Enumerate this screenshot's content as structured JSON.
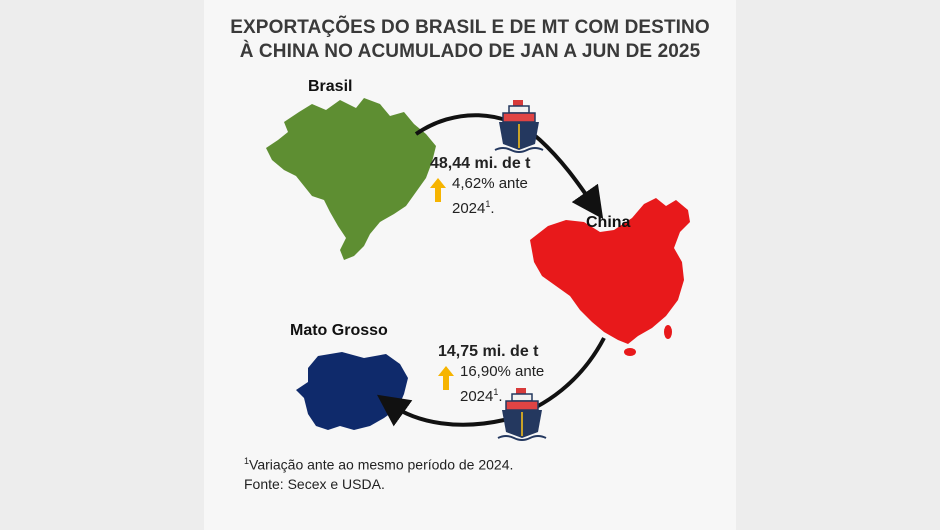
{
  "title": {
    "line1": "EXPORTAÇÕES DO BRASIL E DE MT COM DESTINO",
    "line2": "À CHINA NO ACUMULADO DE JAN A JUN DE 2025"
  },
  "nodes": {
    "brasil": "Brasil",
    "china": "China",
    "mato_grosso": "Mato Grosso"
  },
  "brasil_stat": {
    "value": "48,44 mi. de t",
    "change_line1": "4,62% ante",
    "change_line2": "2024",
    "note_mark": "1"
  },
  "mt_stat": {
    "value": "14,75 mi. de t",
    "change_line1": "16,90% ante",
    "change_line2": "2024",
    "note_mark": "1"
  },
  "footnote": {
    "mark": "1",
    "line1": "Variação ante ao mesmo período de 2024.",
    "line2": "Fonte: Secex e USDA."
  },
  "colors": {
    "brasil_map": "#5e8e32",
    "china_map": "#e8191b",
    "mato_grosso_map": "#0f2a6b",
    "arrow_up": "#f6b400",
    "ship_hull": "#24385f"
  },
  "icons": {
    "ship": "cargo-ship-icon",
    "arrow": "arrow-up-icon"
  }
}
